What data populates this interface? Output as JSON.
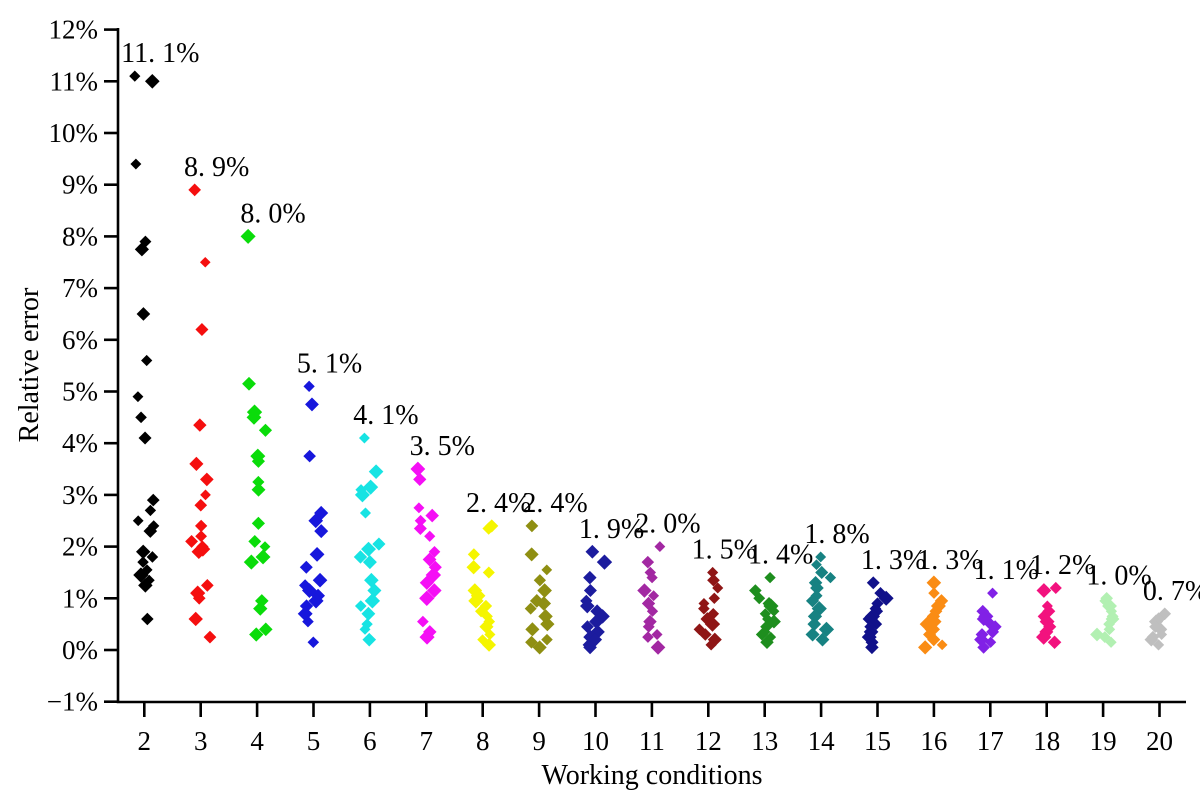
{
  "chart_data": {
    "type": "scatter",
    "title": "",
    "xlabel": "Working conditions",
    "ylabel": "Relative error",
    "xlim": [
      1.5,
      20.6
    ],
    "ylim": [
      -1,
      12
    ],
    "grid": false,
    "legend": "none",
    "marker": "diamond",
    "y_ticks": [
      {
        "v": 12,
        "label": "12%"
      },
      {
        "v": 11,
        "label": "11%"
      },
      {
        "v": 10,
        "label": "10%"
      },
      {
        "v": 9,
        "label": "9%"
      },
      {
        "v": 8,
        "label": "8%"
      },
      {
        "v": 7,
        "label": "7%"
      },
      {
        "v": 6,
        "label": "6%"
      },
      {
        "v": 5,
        "label": "5%"
      },
      {
        "v": 4,
        "label": "4%"
      },
      {
        "v": 3,
        "label": "3%"
      },
      {
        "v": 2,
        "label": "2%"
      },
      {
        "v": 1,
        "label": "1%"
      },
      {
        "v": 0,
        "label": "0%"
      },
      {
        "v": -1,
        "label": "−1%"
      }
    ],
    "series": [
      {
        "condition": 2,
        "x_label": "2",
        "color": "#000000",
        "max_label": "11. 1%",
        "max_value": 11.1,
        "values": [
          11.1,
          11.0,
          9.4,
          7.9,
          7.75,
          6.5,
          5.6,
          4.9,
          4.5,
          4.1,
          2.9,
          2.7,
          2.5,
          2.4,
          2.3,
          1.9,
          1.8,
          1.7,
          1.55,
          1.45,
          1.35,
          1.25,
          0.6
        ]
      },
      {
        "condition": 3,
        "x_label": "3",
        "color": "#F50F0F",
        "max_label": "8. 9%",
        "max_value": 8.9,
        "values": [
          8.9,
          7.5,
          6.2,
          4.35,
          3.6,
          3.3,
          3.0,
          2.8,
          2.4,
          2.2,
          2.1,
          2.0,
          1.95,
          1.9,
          1.25,
          1.1,
          1.0,
          0.6,
          0.25
        ]
      },
      {
        "condition": 4,
        "x_label": "4",
        "color": "#0ADC0A",
        "max_label": "8. 0%",
        "max_value": 8.0,
        "values": [
          8.0,
          5.15,
          4.6,
          4.5,
          4.25,
          3.75,
          3.65,
          3.25,
          3.1,
          2.45,
          2.1,
          2.0,
          1.8,
          1.7,
          0.95,
          0.8,
          0.4,
          0.3
        ]
      },
      {
        "condition": 5,
        "x_label": "5",
        "color": "#1717DC",
        "max_label": "5. 1%",
        "max_value": 5.1,
        "values": [
          5.1,
          4.75,
          3.75,
          2.65,
          2.5,
          2.3,
          1.85,
          1.6,
          1.35,
          1.25,
          1.15,
          1.05,
          0.95,
          0.85,
          0.7,
          0.55,
          0.15
        ]
      },
      {
        "condition": 6,
        "x_label": "6",
        "color": "#17E3E3",
        "max_label": "4. 1%",
        "max_value": 4.1,
        "values": [
          4.1,
          3.45,
          3.15,
          3.1,
          3.0,
          2.65,
          2.05,
          1.95,
          1.8,
          1.7,
          1.35,
          1.15,
          0.95,
          0.85,
          0.7,
          0.5,
          0.4,
          0.2
        ]
      },
      {
        "condition": 7,
        "x_label": "7",
        "color": "#F50FF5",
        "max_label": "3. 5%",
        "max_value": 3.5,
        "values": [
          3.5,
          3.3,
          2.75,
          2.6,
          2.5,
          2.35,
          2.2,
          1.9,
          1.75,
          1.6,
          1.45,
          1.3,
          1.15,
          1.0,
          0.55,
          0.35,
          0.25
        ]
      },
      {
        "condition": 8,
        "x_label": "8",
        "color": "#F5F500",
        "max_label": "2. 4%",
        "max_value": 2.4,
        "values": [
          2.4,
          2.35,
          1.85,
          1.6,
          1.5,
          1.15,
          1.05,
          0.95,
          0.85,
          0.75,
          0.65,
          0.55,
          0.45,
          0.3,
          0.2,
          0.1
        ]
      },
      {
        "condition": 9,
        "x_label": "9",
        "color": "#8F8F12",
        "max_label": "2. 4%",
        "max_value": 2.4,
        "values": [
          2.4,
          1.85,
          1.55,
          1.35,
          1.15,
          0.95,
          0.9,
          0.8,
          0.65,
          0.5,
          0.4,
          0.2,
          0.15,
          0.05
        ]
      },
      {
        "condition": 10,
        "x_label": "10",
        "color": "#1C1C9E",
        "max_label": "1. 9%",
        "max_value": 1.9,
        "values": [
          1.9,
          1.7,
          1.4,
          1.15,
          0.95,
          0.85,
          0.75,
          0.65,
          0.55,
          0.45,
          0.35,
          0.25,
          0.2,
          0.1,
          0.05
        ]
      },
      {
        "condition": 11,
        "x_label": "11",
        "color": "#A228A2",
        "max_label": "2. 0%",
        "max_value": 2.0,
        "values": [
          2.0,
          1.7,
          1.5,
          1.4,
          1.15,
          1.05,
          0.9,
          0.75,
          0.55,
          0.45,
          0.3,
          0.25,
          0.05
        ]
      },
      {
        "condition": 12,
        "x_label": "12",
        "color": "#8F1616",
        "max_label": "1. 5%",
        "max_value": 1.5,
        "values": [
          1.5,
          1.35,
          1.2,
          1.0,
          0.9,
          0.8,
          0.7,
          0.6,
          0.5,
          0.4,
          0.3,
          0.2,
          0.1
        ]
      },
      {
        "condition": 13,
        "x_label": "13",
        "color": "#1E8E1E",
        "max_label": "1. 4%",
        "max_value": 1.4,
        "values": [
          1.4,
          1.15,
          1.0,
          0.9,
          0.85,
          0.75,
          0.7,
          0.6,
          0.55,
          0.45,
          0.35,
          0.3,
          0.25,
          0.15
        ]
      },
      {
        "condition": 14,
        "x_label": "14",
        "color": "#178282",
        "max_label": "1. 8%",
        "max_value": 1.8,
        "values": [
          1.8,
          1.65,
          1.5,
          1.4,
          1.3,
          1.2,
          1.05,
          0.95,
          0.8,
          0.65,
          0.5,
          0.4,
          0.3,
          0.2
        ]
      },
      {
        "condition": 15,
        "x_label": "15",
        "color": "#11118A",
        "max_label": "1. 3%",
        "max_value": 1.3,
        "values": [
          1.3,
          1.1,
          1.0,
          0.9,
          0.8,
          0.75,
          0.65,
          0.6,
          0.5,
          0.45,
          0.35,
          0.25,
          0.15,
          0.05
        ]
      },
      {
        "condition": 16,
        "x_label": "16",
        "color": "#FA8C14",
        "max_label": "1. 3%",
        "max_value": 1.3,
        "values": [
          1.3,
          1.1,
          0.95,
          0.85,
          0.75,
          0.65,
          0.55,
          0.5,
          0.4,
          0.3,
          0.2,
          0.1,
          0.05
        ]
      },
      {
        "condition": 17,
        "x_label": "17",
        "color": "#8121E6",
        "max_label": "1. 1%",
        "max_value": 1.1,
        "values": [
          1.1,
          0.75,
          0.65,
          0.6,
          0.5,
          0.45,
          0.35,
          0.3,
          0.2,
          0.15,
          0.05
        ]
      },
      {
        "condition": 18,
        "x_label": "18",
        "color": "#F2127E",
        "max_label": "1. 2%",
        "max_value": 1.2,
        "values": [
          1.2,
          1.15,
          0.85,
          0.75,
          0.65,
          0.55,
          0.45,
          0.35,
          0.25,
          0.15
        ]
      },
      {
        "condition": 19,
        "x_label": "19",
        "color": "#B2F0B2",
        "max_label": "1. 0%",
        "max_value": 1.0,
        "values": [
          1.0,
          0.95,
          0.85,
          0.75,
          0.65,
          0.6,
          0.5,
          0.4,
          0.3,
          0.25,
          0.15
        ]
      },
      {
        "condition": 20,
        "x_label": "20",
        "color": "#BFBFBF",
        "max_label": "0. 7%",
        "max_value": 0.7,
        "values": [
          0.7,
          0.6,
          0.55,
          0.45,
          0.4,
          0.3,
          0.25,
          0.2,
          0.1
        ]
      }
    ]
  }
}
